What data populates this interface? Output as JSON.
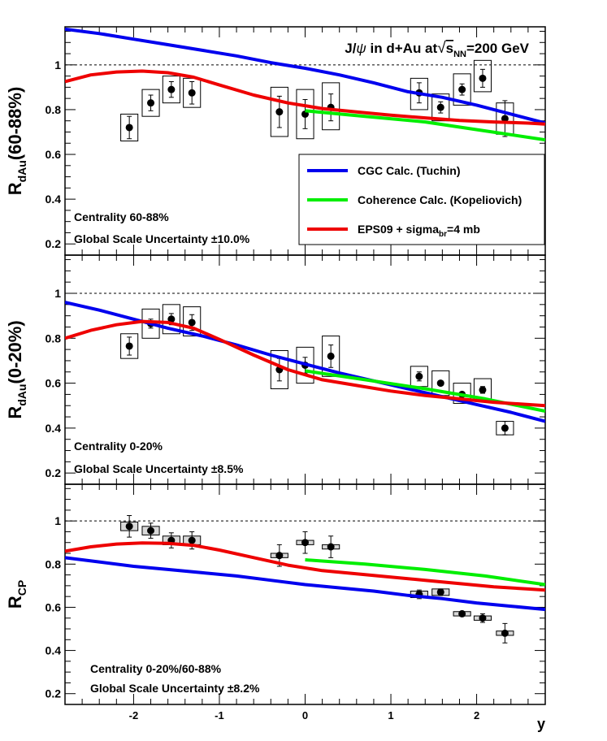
{
  "chart_data": {
    "type": "scatter",
    "title": "J/ψ in d+Au at √s_NN=200 GeV",
    "title_parts": {
      "prefix": "J/",
      "psi": "ψ",
      "mid": " in d+Au at",
      "s": "s",
      "nn": "NN",
      "suffix": "=200 GeV"
    },
    "xlabel": "y",
    "xlim": [
      -2.8,
      2.8
    ],
    "x_ticks": [
      -2,
      -1,
      0,
      1,
      2
    ],
    "x_tick_labels": [
      "-2",
      "-1",
      "0",
      "1",
      "2"
    ],
    "y_ticks": [
      0.2,
      0.4,
      0.6,
      0.8,
      1
    ],
    "y_tick_labels": [
      "0.2",
      "0.4",
      "0.6",
      "0.8",
      "1"
    ],
    "legend": {
      "position": "top-right",
      "entries": [
        {
          "text": "CGC Calc. (Tuchin)",
          "color": "#0000ee"
        },
        {
          "text": "Coherence Calc. (Kopeliovich)",
          "color": "#00ee00"
        },
        {
          "text_main": "EPS09 + sigma",
          "text_sub": "br",
          "text_tail": "=4 mb",
          "color": "#ee0000"
        }
      ]
    },
    "panels": [
      {
        "id": "top",
        "ylabel": {
          "main": "R",
          "sub": "dAu",
          "tail": "(60-88%)"
        },
        "ylim": [
          0.15,
          1.17
        ],
        "annotations": [
          "Centrality 60-88%",
          "Global Scale Uncertainty ±10.0%"
        ],
        "points": [
          {
            "x": -2.05,
            "y": 0.72,
            "err": 0.05,
            "sys_half_w": 0.1,
            "sys_lo": 0.66,
            "sys_hi": 0.78
          },
          {
            "x": -1.8,
            "y": 0.83,
            "err": 0.035,
            "sys_half_w": 0.1,
            "sys_lo": 0.77,
            "sys_hi": 0.89
          },
          {
            "x": -1.56,
            "y": 0.89,
            "err": 0.035,
            "sys_half_w": 0.1,
            "sys_lo": 0.83,
            "sys_hi": 0.95
          },
          {
            "x": -1.32,
            "y": 0.875,
            "err": 0.05,
            "sys_half_w": 0.1,
            "sys_lo": 0.81,
            "sys_hi": 0.94
          },
          {
            "x": -0.3,
            "y": 0.79,
            "err": 0.07,
            "sys_half_w": 0.1,
            "sys_lo": 0.68,
            "sys_hi": 0.9
          },
          {
            "x": 0.0,
            "y": 0.78,
            "err": 0.065,
            "sys_half_w": 0.1,
            "sys_lo": 0.67,
            "sys_hi": 0.89
          },
          {
            "x": 0.3,
            "y": 0.81,
            "err": 0.06,
            "sys_half_w": 0.1,
            "sys_lo": 0.71,
            "sys_hi": 0.92
          },
          {
            "x": 1.33,
            "y": 0.875,
            "err": 0.045,
            "sys_half_w": 0.1,
            "sys_lo": 0.8,
            "sys_hi": 0.94
          },
          {
            "x": 1.58,
            "y": 0.81,
            "err": 0.025,
            "sys_half_w": 0.1,
            "sys_lo": 0.75,
            "sys_hi": 0.87
          },
          {
            "x": 1.83,
            "y": 0.89,
            "err": 0.025,
            "sys_half_w": 0.1,
            "sys_lo": 0.82,
            "sys_hi": 0.96
          },
          {
            "x": 2.07,
            "y": 0.94,
            "err": 0.04,
            "sys_half_w": 0.1,
            "sys_lo": 0.88,
            "sys_hi": 1.02
          },
          {
            "x": 2.33,
            "y": 0.76,
            "err": 0.08,
            "sys_half_w": 0.1,
            "sys_lo": 0.69,
            "sys_hi": 0.83
          }
        ],
        "curves": [
          {
            "name": "CGC Calc. (Tuchin)",
            "color": "#0000ee",
            "x": [
              -2.8,
              -2.4,
              -2.0,
              -1.6,
              -1.2,
              -0.8,
              -0.4,
              0.0,
              0.4,
              0.8,
              1.2,
              1.6,
              2.0,
              2.4,
              2.8
            ],
            "y": [
              1.16,
              1.14,
              1.115,
              1.09,
              1.065,
              1.04,
              1.01,
              0.985,
              0.955,
              0.92,
              0.88,
              0.855,
              0.82,
              0.78,
              0.74
            ]
          },
          {
            "name": "Coherence Calc. (Kopeliovich)",
            "color": "#00ee00",
            "x": [
              0.0,
              0.7,
              1.4,
              2.1,
              2.8
            ],
            "y": [
              0.795,
              0.77,
              0.745,
              0.705,
              0.665
            ]
          },
          {
            "name": "EPS09 + sigma_br=4 mb",
            "color": "#ee0000",
            "x": [
              -2.8,
              -2.5,
              -2.2,
              -1.9,
              -1.6,
              -1.3,
              -1.0,
              -0.6,
              -0.2,
              0.2,
              0.6,
              1.0,
              1.4,
              1.8,
              2.2,
              2.6,
              2.8
            ],
            "y": [
              0.925,
              0.955,
              0.968,
              0.972,
              0.965,
              0.945,
              0.91,
              0.865,
              0.83,
              0.805,
              0.79,
              0.775,
              0.763,
              0.752,
              0.745,
              0.74,
              0.735
            ]
          }
        ]
      },
      {
        "id": "middle",
        "ylabel": {
          "main": "R",
          "sub": "dAu",
          "tail": "(0-20%)"
        },
        "ylim": [
          0.15,
          1.17
        ],
        "annotations": [
          "Centrality 0-20%",
          "Global Scale Uncertainty ±8.5%"
        ],
        "points": [
          {
            "x": -2.05,
            "y": 0.765,
            "err": 0.04,
            "sys_half_w": 0.1,
            "sys_lo": 0.71,
            "sys_hi": 0.82
          },
          {
            "x": -1.8,
            "y": 0.865,
            "err": 0.02,
            "sys_half_w": 0.1,
            "sys_lo": 0.8,
            "sys_hi": 0.93
          },
          {
            "x": -1.56,
            "y": 0.885,
            "err": 0.025,
            "sys_half_w": 0.1,
            "sys_lo": 0.82,
            "sys_hi": 0.95
          },
          {
            "x": -1.32,
            "y": 0.87,
            "err": 0.035,
            "sys_half_w": 0.1,
            "sys_lo": 0.81,
            "sys_hi": 0.94
          },
          {
            "x": -0.3,
            "y": 0.66,
            "err": 0.05,
            "sys_half_w": 0.1,
            "sys_lo": 0.575,
            "sys_hi": 0.745
          },
          {
            "x": 0.0,
            "y": 0.68,
            "err": 0.035,
            "sys_half_w": 0.1,
            "sys_lo": 0.6,
            "sys_hi": 0.76
          },
          {
            "x": 0.3,
            "y": 0.72,
            "err": 0.05,
            "sys_half_w": 0.1,
            "sys_lo": 0.63,
            "sys_hi": 0.81
          },
          {
            "x": 1.33,
            "y": 0.63,
            "err": 0.02,
            "sys_half_w": 0.1,
            "sys_lo": 0.585,
            "sys_hi": 0.675
          },
          {
            "x": 1.58,
            "y": 0.6,
            "err": 0.01,
            "sys_half_w": 0.1,
            "sys_lo": 0.545,
            "sys_hi": 0.655
          },
          {
            "x": 1.83,
            "y": 0.55,
            "err": 0.01,
            "sys_half_w": 0.1,
            "sys_lo": 0.51,
            "sys_hi": 0.6
          },
          {
            "x": 2.07,
            "y": 0.57,
            "err": 0.015,
            "sys_half_w": 0.1,
            "sys_lo": 0.52,
            "sys_hi": 0.62
          },
          {
            "x": 2.33,
            "y": 0.4,
            "err": 0.03,
            "sys_half_w": 0.1,
            "sys_lo": 0.37,
            "sys_hi": 0.43
          }
        ],
        "curves": [
          {
            "name": "CGC Calc. (Tuchin)",
            "color": "#0000ee",
            "x": [
              -2.8,
              -2.4,
              -2.0,
              -1.6,
              -1.2,
              -0.8,
              -0.4,
              0.0,
              0.4,
              0.8,
              1.2,
              1.6,
              2.0,
              2.4,
              2.8
            ],
            "y": [
              0.96,
              0.925,
              0.885,
              0.845,
              0.81,
              0.77,
              0.725,
              0.685,
              0.645,
              0.61,
              0.575,
              0.54,
              0.505,
              0.47,
              0.43
            ]
          },
          {
            "name": "Coherence Calc. (Kopeliovich)",
            "color": "#00ee00",
            "x": [
              0.0,
              0.7,
              1.4,
              2.1,
              2.8
            ],
            "y": [
              0.655,
              0.615,
              0.575,
              0.53,
              0.475
            ]
          },
          {
            "name": "EPS09 + sigma_br=4 mb",
            "color": "#ee0000",
            "x": [
              -2.8,
              -2.5,
              -2.2,
              -1.9,
              -1.6,
              -1.3,
              -1.0,
              -0.6,
              -0.2,
              0.2,
              0.6,
              1.0,
              1.4,
              1.8,
              2.2,
              2.6,
              2.8
            ],
            "y": [
              0.8,
              0.835,
              0.86,
              0.875,
              0.87,
              0.845,
              0.795,
              0.725,
              0.66,
              0.615,
              0.59,
              0.565,
              0.545,
              0.53,
              0.515,
              0.505,
              0.5
            ]
          }
        ]
      },
      {
        "id": "bottom",
        "ylabel": {
          "main": "R",
          "sub": "CP",
          "tail": ""
        },
        "ylim": [
          0.15,
          1.17
        ],
        "annotations": [
          "Centrality 0-20%/60-88%",
          "Global Scale Uncertainty ±8.2%"
        ],
        "points": [
          {
            "x": -2.05,
            "y": 0.975,
            "err": 0.05,
            "sys_half_w": 0.1,
            "sys_lo": 0.955,
            "sys_hi": 0.995
          },
          {
            "x": -1.8,
            "y": 0.955,
            "err": 0.035,
            "sys_half_w": 0.1,
            "sys_lo": 0.935,
            "sys_hi": 0.975
          },
          {
            "x": -1.56,
            "y": 0.91,
            "err": 0.035,
            "sys_half_w": 0.1,
            "sys_lo": 0.89,
            "sys_hi": 0.93
          },
          {
            "x": -1.32,
            "y": 0.91,
            "err": 0.04,
            "sys_half_w": 0.1,
            "sys_lo": 0.89,
            "sys_hi": 0.93
          },
          {
            "x": -0.3,
            "y": 0.84,
            "err": 0.05,
            "sys_half_w": 0.1,
            "sys_lo": 0.83,
            "sys_hi": 0.85
          },
          {
            "x": 0.0,
            "y": 0.9,
            "err": 0.05,
            "sys_half_w": 0.1,
            "sys_lo": 0.89,
            "sys_hi": 0.91
          },
          {
            "x": 0.3,
            "y": 0.88,
            "err": 0.05,
            "sys_half_w": 0.1,
            "sys_lo": 0.87,
            "sys_hi": 0.89
          },
          {
            "x": 1.33,
            "y": 0.66,
            "err": 0.02,
            "sys_half_w": 0.1,
            "sys_lo": 0.645,
            "sys_hi": 0.675
          },
          {
            "x": 1.58,
            "y": 0.67,
            "err": 0.015,
            "sys_half_w": 0.1,
            "sys_lo": 0.655,
            "sys_hi": 0.685
          },
          {
            "x": 1.83,
            "y": 0.57,
            "err": 0.01,
            "sys_half_w": 0.1,
            "sys_lo": 0.56,
            "sys_hi": 0.58
          },
          {
            "x": 2.07,
            "y": 0.55,
            "err": 0.02,
            "sys_half_w": 0.1,
            "sys_lo": 0.54,
            "sys_hi": 0.56
          },
          {
            "x": 2.33,
            "y": 0.48,
            "err": 0.045,
            "sys_half_w": 0.1,
            "sys_lo": 0.47,
            "sys_hi": 0.49
          }
        ],
        "curves": [
          {
            "name": "CGC Calc. (Tuchin)",
            "color": "#0000ee",
            "x": [
              -2.8,
              -2.4,
              -2.0,
              -1.6,
              -1.2,
              -0.8,
              -0.4,
              0.0,
              0.4,
              0.8,
              1.2,
              1.6,
              2.0,
              2.4,
              2.8
            ],
            "y": [
              0.83,
              0.81,
              0.79,
              0.775,
              0.76,
              0.745,
              0.725,
              0.705,
              0.69,
              0.675,
              0.655,
              0.64,
              0.62,
              0.605,
              0.59
            ]
          },
          {
            "name": "Coherence Calc. (Kopeliovich)",
            "color": "#00ee00",
            "x": [
              0.0,
              0.7,
              1.4,
              2.1,
              2.8
            ],
            "y": [
              0.82,
              0.8,
              0.775,
              0.745,
              0.705
            ]
          },
          {
            "name": "EPS09 + sigma_br=4 mb",
            "color": "#ee0000",
            "x": [
              -2.8,
              -2.5,
              -2.2,
              -1.9,
              -1.6,
              -1.3,
              -1.0,
              -0.6,
              -0.2,
              0.2,
              0.6,
              1.0,
              1.4,
              1.8,
              2.2,
              2.6,
              2.8
            ],
            "y": [
              0.86,
              0.88,
              0.893,
              0.898,
              0.896,
              0.887,
              0.865,
              0.83,
              0.795,
              0.77,
              0.755,
              0.74,
              0.725,
              0.71,
              0.695,
              0.685,
              0.68
            ]
          }
        ]
      }
    ]
  }
}
